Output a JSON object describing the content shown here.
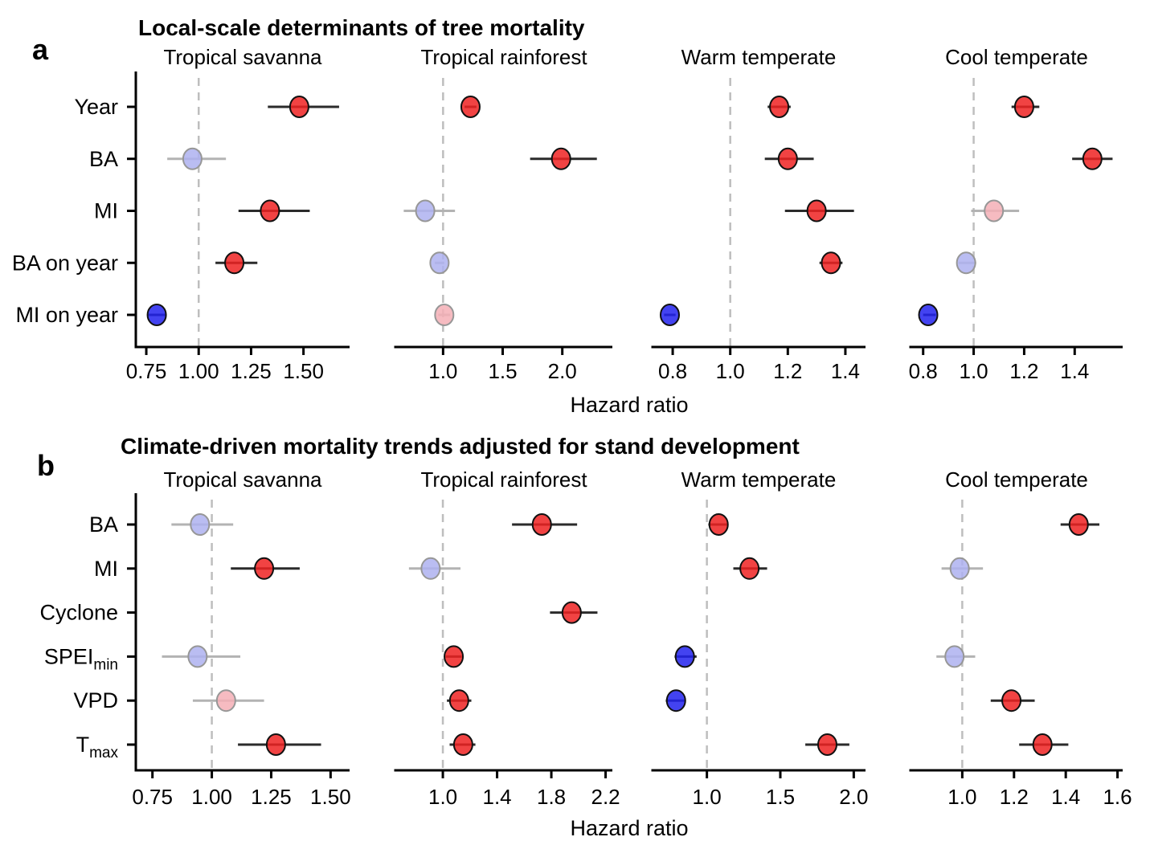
{
  "figure": {
    "background": "#FFFFFF",
    "panel_a_title": "Local-scale determinants of tree mortality",
    "panel_b_title": "Climate-driven mortality trends adjusted for stand development"
  },
  "chart_data": {
    "type": "forest",
    "reference_line": 1.0,
    "legend_position": "none",
    "grid": false,
    "styles": {
      "red": {
        "fill": "#EE2222",
        "stroke": "#111111",
        "whisker": "#2B2B2B"
      },
      "blue": {
        "fill": "#2222EE",
        "stroke": "#111111",
        "whisker": "#2B2B2B"
      },
      "pale-blue": {
        "fill": "#AEB2F0",
        "stroke": "#979797",
        "whisker": "#B3B3B3"
      },
      "pale-red": {
        "fill": "#F4AFB6",
        "stroke": "#979797",
        "whisker": "#B3B3B3"
      },
      "dashed_line": "#BEBEBE",
      "axis": "#000000"
    },
    "panels": [
      {
        "label": "a",
        "title": "Local-scale determinants of tree mortality",
        "xlabel": "Hazard ratio",
        "rows": [
          "Year",
          "BA",
          "MI",
          "BA on year",
          "MI on year"
        ],
        "subplots": [
          {
            "title": "Tropical savanna",
            "xlim": [
              0.7,
              1.72
            ],
            "ticks": [
              "0.75",
              "1.00",
              "1.25",
              "1.50"
            ],
            "tick_values": [
              0.75,
              1.0,
              1.25,
              1.5
            ],
            "points": [
              {
                "row": "Year",
                "est": 1.48,
                "lo": 1.33,
                "hi": 1.67,
                "style": "red"
              },
              {
                "row": "BA",
                "est": 0.97,
                "lo": 0.85,
                "hi": 1.13,
                "style": "pale-blue"
              },
              {
                "row": "MI",
                "est": 1.34,
                "lo": 1.19,
                "hi": 1.53,
                "style": "red"
              },
              {
                "row": "BA on year",
                "est": 1.17,
                "lo": 1.08,
                "hi": 1.28,
                "style": "red"
              },
              {
                "row": "MI on year",
                "est": 0.8,
                "lo": 0.76,
                "hi": 0.84,
                "style": "blue"
              }
            ]
          },
          {
            "title": "Tropical rainforest",
            "xlim": [
              0.6,
              2.42
            ],
            "ticks": [
              "1.0",
              "1.5",
              "2.0"
            ],
            "tick_values": [
              1.0,
              1.5,
              2.0
            ],
            "points": [
              {
                "row": "Year",
                "est": 1.23,
                "lo": 1.18,
                "hi": 1.28,
                "style": "red"
              },
              {
                "row": "BA",
                "est": 1.99,
                "lo": 1.73,
                "hi": 2.29,
                "style": "red"
              },
              {
                "row": "MI",
                "est": 0.85,
                "lo": 0.67,
                "hi": 1.1,
                "style": "pale-blue"
              },
              {
                "row": "BA on year",
                "est": 0.97,
                "lo": 0.93,
                "hi": 1.01,
                "style": "pale-blue"
              },
              {
                "row": "MI on year",
                "est": 1.01,
                "lo": 0.96,
                "hi": 1.06,
                "style": "pale-red"
              }
            ]
          },
          {
            "title": "Warm temperate",
            "xlim": [
              0.73,
              1.47
            ],
            "ticks": [
              "0.8",
              "1.0",
              "1.2",
              "1.4"
            ],
            "tick_values": [
              0.8,
              1.0,
              1.2,
              1.4
            ],
            "points": [
              {
                "row": "Year",
                "est": 1.17,
                "lo": 1.13,
                "hi": 1.21,
                "style": "red"
              },
              {
                "row": "BA",
                "est": 1.2,
                "lo": 1.12,
                "hi": 1.29,
                "style": "red"
              },
              {
                "row": "MI",
                "est": 1.3,
                "lo": 1.19,
                "hi": 1.43,
                "style": "red"
              },
              {
                "row": "BA on year",
                "est": 1.35,
                "lo": 1.31,
                "hi": 1.39,
                "style": "red"
              },
              {
                "row": "MI on year",
                "est": 0.79,
                "lo": 0.77,
                "hi": 0.81,
                "style": "blue"
              }
            ]
          },
          {
            "title": "Cool temperate",
            "xlim": [
              0.75,
              1.59
            ],
            "ticks": [
              "0.8",
              "1.0",
              "1.2",
              "1.4"
            ],
            "tick_values": [
              0.8,
              1.0,
              1.2,
              1.4
            ],
            "points": [
              {
                "row": "Year",
                "est": 1.2,
                "lo": 1.15,
                "hi": 1.26,
                "style": "red"
              },
              {
                "row": "BA",
                "est": 1.47,
                "lo": 1.39,
                "hi": 1.55,
                "style": "red"
              },
              {
                "row": "MI",
                "est": 1.08,
                "lo": 0.99,
                "hi": 1.18,
                "style": "pale-red"
              },
              {
                "row": "BA on year",
                "est": 0.97,
                "lo": 0.94,
                "hi": 1.01,
                "style": "pale-blue"
              },
              {
                "row": "MI on year",
                "est": 0.82,
                "lo": 0.8,
                "hi": 0.85,
                "style": "blue"
              }
            ]
          }
        ]
      },
      {
        "label": "b",
        "title": "Climate-driven mortality trends adjusted for stand development",
        "xlabel": "Hazard ratio",
        "rows": [
          "BA",
          "MI",
          "Cyclone",
          "SPEI_min",
          "VPD",
          "T_max"
        ],
        "subplots": [
          {
            "title": "Tropical savanna",
            "xlim": [
              0.68,
              1.58
            ],
            "ticks": [
              "0.75",
              "1.00",
              "1.25",
              "1.50"
            ],
            "tick_values": [
              0.75,
              1.0,
              1.25,
              1.5
            ],
            "points": [
              {
                "row": "BA",
                "est": 0.95,
                "lo": 0.83,
                "hi": 1.09,
                "style": "pale-blue"
              },
              {
                "row": "MI",
                "est": 1.22,
                "lo": 1.08,
                "hi": 1.37,
                "style": "red"
              },
              {
                "row": "SPEI_min",
                "est": 0.94,
                "lo": 0.79,
                "hi": 1.12,
                "style": "pale-blue"
              },
              {
                "row": "VPD",
                "est": 1.06,
                "lo": 0.92,
                "hi": 1.22,
                "style": "pale-red"
              },
              {
                "row": "T_max",
                "est": 1.27,
                "lo": 1.11,
                "hi": 1.46,
                "style": "red"
              }
            ]
          },
          {
            "title": "Tropical rainforest",
            "xlim": [
              0.65,
              2.25
            ],
            "ticks": [
              "1.0",
              "1.4",
              "1.8",
              "2.2"
            ],
            "tick_values": [
              1.0,
              1.4,
              1.8,
              2.2
            ],
            "points": [
              {
                "row": "BA",
                "est": 1.73,
                "lo": 1.51,
                "hi": 1.99,
                "style": "red"
              },
              {
                "row": "MI",
                "est": 0.91,
                "lo": 0.75,
                "hi": 1.13,
                "style": "pale-blue"
              },
              {
                "row": "Cyclone",
                "est": 1.95,
                "lo": 1.79,
                "hi": 2.14,
                "style": "red"
              },
              {
                "row": "SPEI_min",
                "est": 1.08,
                "lo": 1.02,
                "hi": 1.14,
                "style": "red"
              },
              {
                "row": "VPD",
                "est": 1.12,
                "lo": 1.03,
                "hi": 1.21,
                "style": "red"
              },
              {
                "row": "T_max",
                "est": 1.15,
                "lo": 1.05,
                "hi": 1.24,
                "style": "red"
              }
            ]
          },
          {
            "title": "Warm temperate",
            "xlim": [
              0.63,
              2.08
            ],
            "ticks": [
              "1.0",
              "1.5",
              "2.0"
            ],
            "tick_values": [
              1.0,
              1.5,
              2.0
            ],
            "points": [
              {
                "row": "BA",
                "est": 1.08,
                "lo": 1.01,
                "hi": 1.14,
                "style": "red"
              },
              {
                "row": "MI",
                "est": 1.29,
                "lo": 1.18,
                "hi": 1.41,
                "style": "red"
              },
              {
                "row": "SPEI_min",
                "est": 0.85,
                "lo": 0.78,
                "hi": 0.93,
                "style": "blue"
              },
              {
                "row": "VPD",
                "est": 0.79,
                "lo": 0.72,
                "hi": 0.85,
                "style": "blue"
              },
              {
                "row": "T_max",
                "est": 1.82,
                "lo": 1.67,
                "hi": 1.97,
                "style": "red"
              }
            ]
          },
          {
            "title": "Cool temperate",
            "xlim": [
              0.8,
              1.62
            ],
            "ticks": [
              "1.0",
              "1.2",
              "1.4",
              "1.6"
            ],
            "tick_values": [
              1.0,
              1.2,
              1.4,
              1.6
            ],
            "points": [
              {
                "row": "BA",
                "est": 1.45,
                "lo": 1.38,
                "hi": 1.53,
                "style": "red"
              },
              {
                "row": "MI",
                "est": 0.99,
                "lo": 0.92,
                "hi": 1.08,
                "style": "pale-blue"
              },
              {
                "row": "SPEI_min",
                "est": 0.97,
                "lo": 0.9,
                "hi": 1.05,
                "style": "pale-blue"
              },
              {
                "row": "VPD",
                "est": 1.19,
                "lo": 1.11,
                "hi": 1.28,
                "style": "red"
              },
              {
                "row": "T_max",
                "est": 1.31,
                "lo": 1.22,
                "hi": 1.41,
                "style": "red"
              }
            ]
          }
        ]
      }
    ]
  }
}
